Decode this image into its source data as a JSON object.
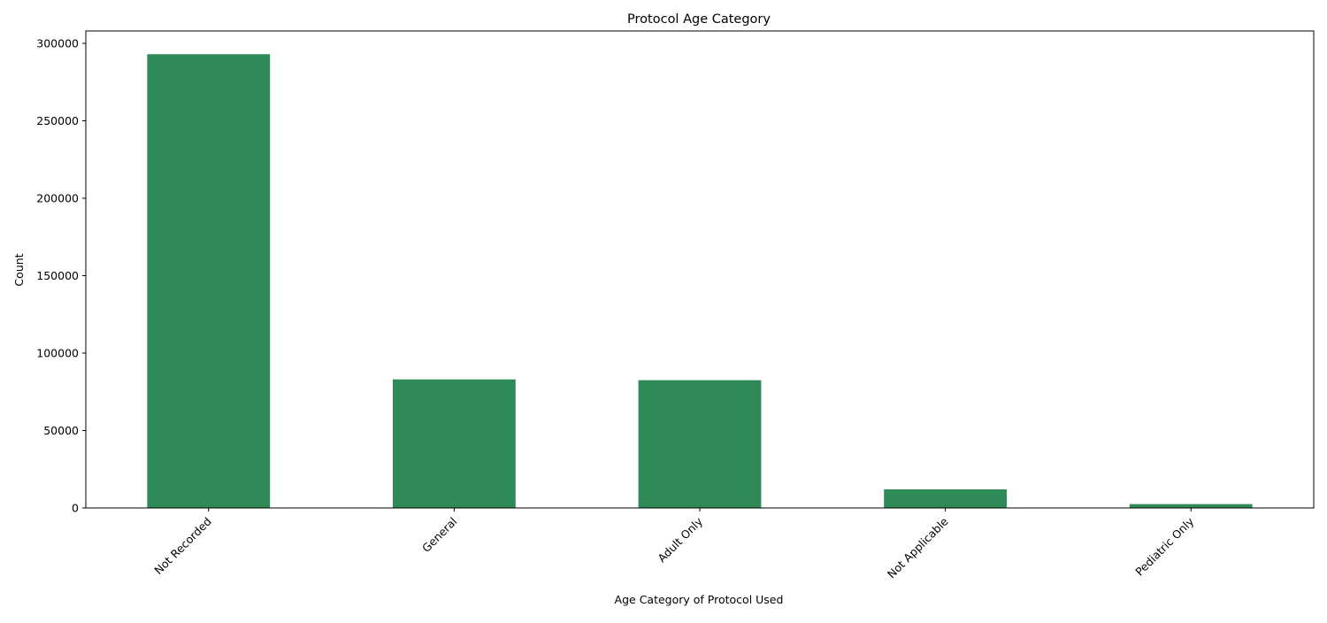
{
  "chart_data": {
    "type": "bar",
    "title": "Protocol Age Category",
    "xlabel": "Age Category of Protocol Used",
    "ylabel": "Count",
    "categories": [
      "Not Recorded",
      "General",
      "Adult Only",
      "Not Applicable",
      "Pediatric Only"
    ],
    "values": [
      293000,
      83000,
      82500,
      12000,
      2500
    ],
    "ylim": [
      0,
      308000
    ],
    "yticks": [
      0,
      50000,
      100000,
      150000,
      200000,
      250000,
      300000
    ],
    "ytick_labels": [
      "0",
      "50000",
      "100000",
      "150000",
      "200000",
      "250000",
      "300000"
    ],
    "bar_color": "#2e8b57",
    "grid": false,
    "legend": "none"
  }
}
